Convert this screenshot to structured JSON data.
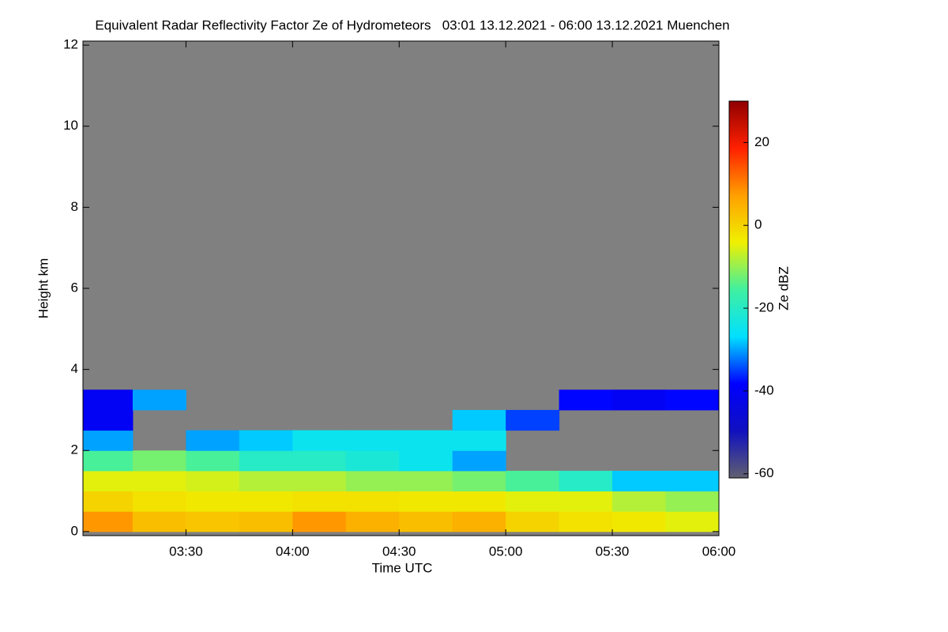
{
  "chart_data": {
    "type": "heatmap",
    "title": "Equivalent Radar Reflectivity Factor Ze of Hydrometeors   03:01 13.12.2021 - 06:00 13.12.2021 Muenchen",
    "x_label": "Time UTC",
    "y_label": "Height km",
    "colorbar_label": "Ze dBZ",
    "xlim": [
      3.0167,
      6.0
    ],
    "xticks": [
      {
        "value": 3.5,
        "label": "03:30"
      },
      {
        "value": 4.0,
        "label": "04:00"
      },
      {
        "value": 4.5,
        "label": "04:30"
      },
      {
        "value": 5.0,
        "label": "05:00"
      },
      {
        "value": 5.5,
        "label": "05:30"
      },
      {
        "value": 6.0,
        "label": "06:00"
      }
    ],
    "ylim": [
      -0.1,
      12.1
    ],
    "yticks": [
      0,
      2,
      4,
      6,
      8,
      10,
      12
    ],
    "zlim": [
      -61,
      30
    ],
    "zticks": [
      -60,
      -40,
      -20,
      0,
      20
    ],
    "colormap": [
      "#606070",
      "#1010c0",
      "#0000ff",
      "#00e0ff",
      "#40f0a0",
      "#f0f000",
      "#ffa000",
      "#ff2000",
      "#900000"
    ],
    "background": "#808080",
    "x_edges": [
      3.0167,
      3.25,
      3.5,
      3.75,
      4.0,
      4.25,
      4.5,
      4.75,
      5.0,
      5.25,
      5.5,
      5.75,
      6.0
    ],
    "y_edges": [
      0,
      0.5,
      1,
      1.5,
      2,
      2.5,
      3,
      3.5
    ],
    "values": [
      [
        8,
        3,
        2,
        3,
        8,
        5,
        3,
        5,
        0,
        -2,
        -3,
        -5
      ],
      [
        0,
        -2,
        -3,
        -3,
        -2,
        -2,
        -3,
        -3,
        -5,
        -5,
        -8,
        -10
      ],
      [
        -5,
        -5,
        -6,
        -8,
        -8,
        -10,
        -10,
        -12,
        -15,
        -20,
        -28,
        -28
      ],
      [
        -15,
        -12,
        -15,
        -20,
        -20,
        -22,
        -25,
        -30,
        null,
        null,
        null,
        null
      ],
      [
        -30,
        null,
        -30,
        -28,
        -25,
        -25,
        -25,
        -25,
        null,
        null,
        null,
        null
      ],
      [
        -40,
        null,
        null,
        null,
        null,
        null,
        null,
        -28,
        -35,
        null,
        null,
        null
      ],
      [
        -40,
        -30,
        null,
        null,
        null,
        null,
        null,
        null,
        null,
        -38,
        -40,
        -38
      ]
    ]
  }
}
